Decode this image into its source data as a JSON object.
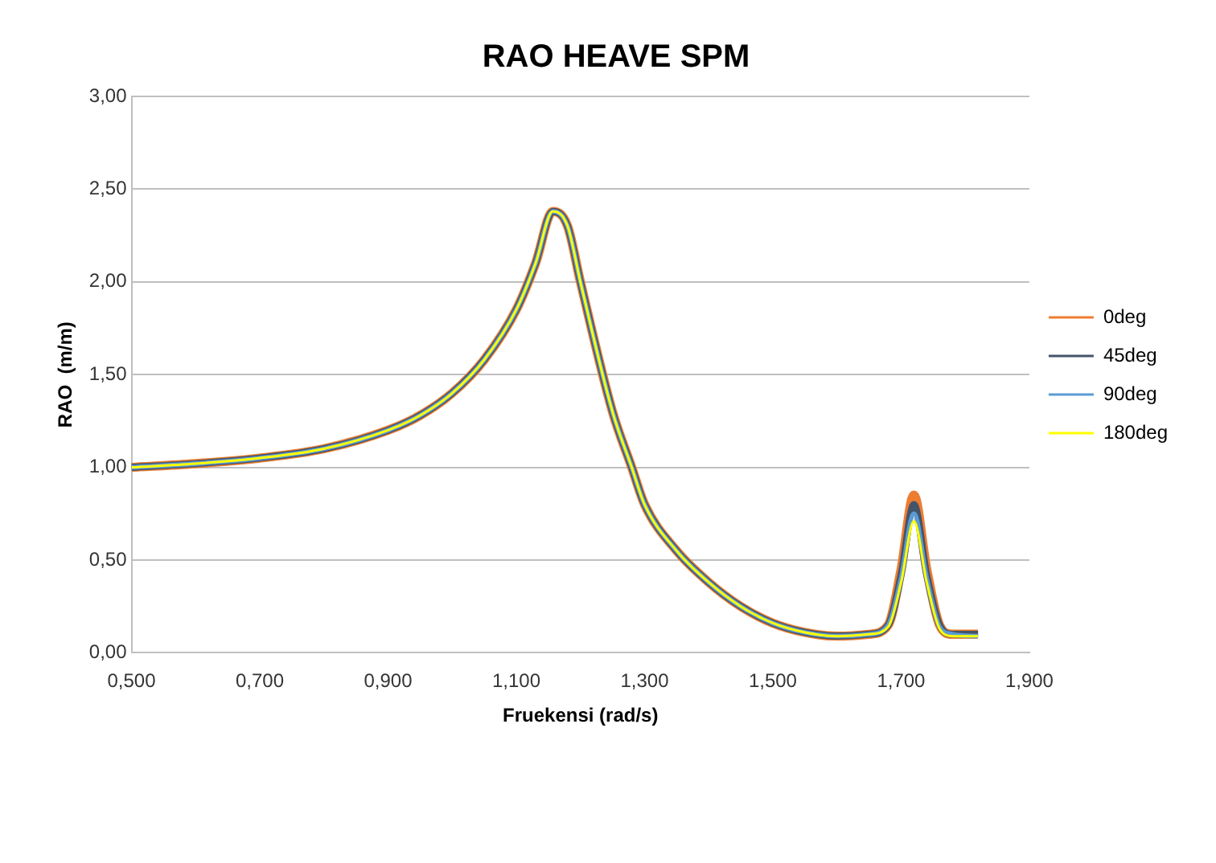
{
  "chart_data": {
    "type": "line",
    "title": "RAO HEAVE SPM",
    "xlabel": "Fruekensi (rad/s)",
    "ylabel": "RAO  (m/m)",
    "x": [
      0.5,
      0.6,
      0.7,
      0.8,
      0.9,
      0.95,
      1.0,
      1.05,
      1.1,
      1.13,
      1.157,
      1.18,
      1.2,
      1.25,
      1.28,
      1.3,
      1.35,
      1.4,
      1.45,
      1.5,
      1.55,
      1.6,
      1.65,
      1.68,
      1.7,
      1.72,
      1.74,
      1.76,
      1.78,
      1.82
    ],
    "series": [
      {
        "name": "0deg",
        "color": "#ed7d31",
        "values": [
          1.0,
          1.02,
          1.05,
          1.1,
          1.2,
          1.28,
          1.4,
          1.58,
          1.85,
          2.1,
          2.38,
          2.3,
          2.0,
          1.3,
          1.0,
          0.8,
          0.55,
          0.38,
          0.25,
          0.16,
          0.11,
          0.09,
          0.1,
          0.15,
          0.45,
          0.85,
          0.45,
          0.15,
          0.1,
          0.1
        ]
      },
      {
        "name": "45deg",
        "color": "#44546a",
        "values": [
          1.0,
          1.02,
          1.05,
          1.1,
          1.2,
          1.28,
          1.4,
          1.58,
          1.85,
          2.1,
          2.38,
          2.3,
          2.0,
          1.3,
          1.0,
          0.8,
          0.55,
          0.38,
          0.25,
          0.16,
          0.11,
          0.09,
          0.1,
          0.15,
          0.42,
          0.8,
          0.42,
          0.15,
          0.1,
          0.1
        ]
      },
      {
        "name": "90deg",
        "color": "#5b9bd5",
        "values": [
          1.0,
          1.02,
          1.05,
          1.1,
          1.2,
          1.28,
          1.4,
          1.58,
          1.85,
          2.1,
          2.38,
          2.3,
          2.0,
          1.3,
          1.0,
          0.8,
          0.55,
          0.38,
          0.25,
          0.16,
          0.11,
          0.09,
          0.1,
          0.15,
          0.4,
          0.75,
          0.4,
          0.14,
          0.1,
          0.09
        ]
      },
      {
        "name": "180deg",
        "color": "#ffff00",
        "values": [
          1.0,
          1.02,
          1.05,
          1.1,
          1.2,
          1.28,
          1.4,
          1.58,
          1.85,
          2.1,
          2.38,
          2.3,
          2.0,
          1.3,
          1.0,
          0.8,
          0.55,
          0.38,
          0.25,
          0.16,
          0.11,
          0.09,
          0.1,
          0.14,
          0.38,
          0.71,
          0.38,
          0.13,
          0.09,
          0.09
        ]
      }
    ],
    "xlim": [
      0.5,
      1.9
    ],
    "xticks": [
      {
        "value": 0.5,
        "label": "0,500"
      },
      {
        "value": 0.7,
        "label": "0,700"
      },
      {
        "value": 0.9,
        "label": "0,900"
      },
      {
        "value": 1.1,
        "label": "1,100"
      },
      {
        "value": 1.3,
        "label": "1,300"
      },
      {
        "value": 1.5,
        "label": "1,500"
      },
      {
        "value": 1.7,
        "label": "1,700"
      },
      {
        "value": 1.9,
        "label": "1,900"
      }
    ],
    "ylim": [
      0,
      3
    ],
    "yticks": [
      {
        "value": 0,
        "label": "0,00"
      },
      {
        "value": 0.5,
        "label": "0,50"
      },
      {
        "value": 1,
        "label": "1,00"
      },
      {
        "value": 1.5,
        "label": "1,50"
      },
      {
        "value": 2,
        "label": "2,00"
      },
      {
        "value": 2.5,
        "label": "2,50"
      },
      {
        "value": 3,
        "label": "3,00"
      }
    ],
    "grid": "y",
    "legend": "right",
    "marker": "none",
    "line_style": "solid"
  }
}
